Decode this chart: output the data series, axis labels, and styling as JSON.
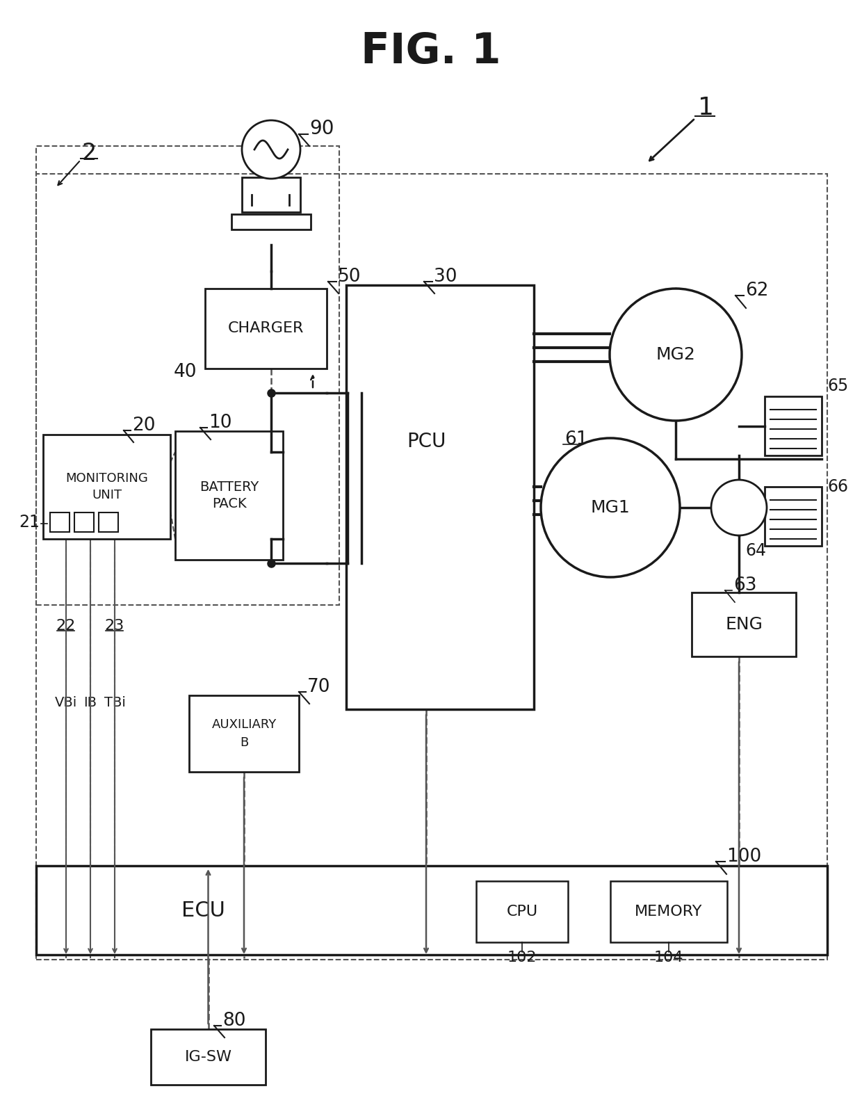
{
  "title": "FIG. 1",
  "bg_color": "#ffffff",
  "line_color": "#1a1a1a",
  "dashed_color": "#555555",
  "components": {
    "charger": {
      "label": "CHARGER",
      "ref": "40"
    },
    "battery_pack_line1": "BATTERY",
    "battery_pack_line2": "PACK",
    "battery_pack_ref": "10",
    "monitoring_line1": "MONITORING",
    "monitoring_line2": "UNIT",
    "monitoring_ref": "20",
    "pcu_label": "PCU",
    "pcu_ref": "30",
    "aux_line1": "AUXILIARY",
    "aux_line2": "B",
    "aux_ref": "70",
    "ecu_label": "ECU",
    "ecu_ref": "100",
    "cpu_label": "CPU",
    "cpu_ref": "102",
    "memory_label": "MEMORY",
    "memory_ref": "104",
    "mg1_label": "MG1",
    "mg1_ref": "61",
    "mg2_label": "MG2",
    "mg2_ref": "62",
    "eng_label": "ENG",
    "eng_ref": "63",
    "igsw_label": "IG-SW",
    "igsw_ref": "80",
    "plug_ref": "90",
    "ps_ref": "64",
    "gear1_ref": "65",
    "gear2_ref": "66",
    "ref_50": "50",
    "ref_1": "1",
    "ref_2": "2",
    "ref_21": "21",
    "ref_22": "22",
    "ref_23": "23"
  },
  "signal_labels": [
    "VBi",
    "IB",
    "TBi"
  ]
}
